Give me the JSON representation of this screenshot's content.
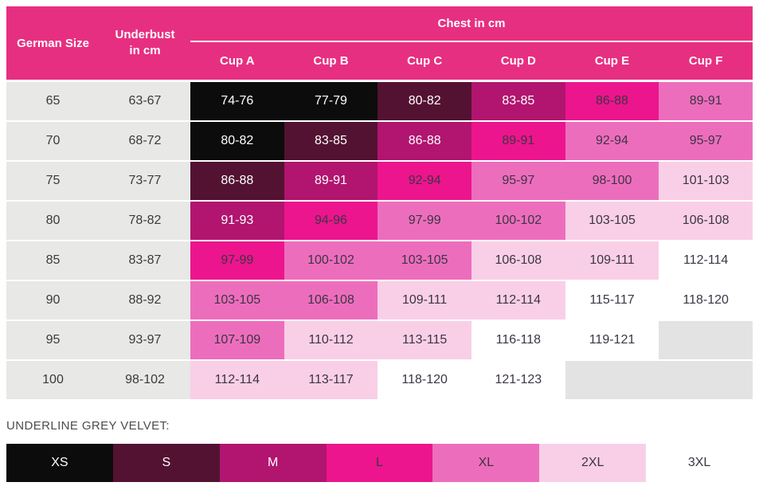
{
  "chart_data": {
    "type": "table",
    "title": "Bra size chart with color-coded garment sizes",
    "header": {
      "german_size": "German Size",
      "underbust": "Underbust in cm",
      "chest_title": "Chest in cm",
      "cups": [
        "Cup A",
        "Cup B",
        "Cup C",
        "Cup D",
        "Cup E",
        "Cup F"
      ]
    },
    "rows": [
      {
        "size": "65",
        "underbust": "63-67",
        "cups": [
          [
            "74-76",
            "XS"
          ],
          [
            "77-79",
            "XS"
          ],
          [
            "80-82",
            "S"
          ],
          [
            "83-85",
            "M"
          ],
          [
            "86-88",
            "L"
          ],
          [
            "89-91",
            "XL"
          ]
        ]
      },
      {
        "size": "70",
        "underbust": "68-72",
        "cups": [
          [
            "80-82",
            "XS"
          ],
          [
            "83-85",
            "S"
          ],
          [
            "86-88",
            "M"
          ],
          [
            "89-91",
            "L"
          ],
          [
            "92-94",
            "XL"
          ],
          [
            "95-97",
            "XL"
          ]
        ]
      },
      {
        "size": "75",
        "underbust": "73-77",
        "cups": [
          [
            "86-88",
            "S"
          ],
          [
            "89-91",
            "M"
          ],
          [
            "92-94",
            "L"
          ],
          [
            "95-97",
            "XL"
          ],
          [
            "98-100",
            "XL"
          ],
          [
            "101-103",
            "2XL"
          ]
        ]
      },
      {
        "size": "80",
        "underbust": "78-82",
        "cups": [
          [
            "91-93",
            "M"
          ],
          [
            "94-96",
            "L"
          ],
          [
            "97-99",
            "XL"
          ],
          [
            "100-102",
            "XL"
          ],
          [
            "103-105",
            "2XL"
          ],
          [
            "106-108",
            "2XL"
          ]
        ]
      },
      {
        "size": "85",
        "underbust": "83-87",
        "cups": [
          [
            "97-99",
            "L"
          ],
          [
            "100-102",
            "XL"
          ],
          [
            "103-105",
            "XL"
          ],
          [
            "106-108",
            "2XL"
          ],
          [
            "109-111",
            "2XL"
          ],
          [
            "112-114",
            "3XL"
          ]
        ]
      },
      {
        "size": "90",
        "underbust": "88-92",
        "cups": [
          [
            "103-105",
            "XL"
          ],
          [
            "106-108",
            "XL"
          ],
          [
            "109-111",
            "2XL"
          ],
          [
            "112-114",
            "2XL"
          ],
          [
            "115-117",
            "3XL"
          ],
          [
            "118-120",
            "3XL"
          ]
        ]
      },
      {
        "size": "95",
        "underbust": "93-97",
        "cups": [
          [
            "107-109",
            "XL"
          ],
          [
            "110-112",
            "2XL"
          ],
          [
            "113-115",
            "2XL"
          ],
          [
            "116-118",
            "3XL"
          ],
          [
            "119-121",
            "3XL"
          ],
          [
            "",
            ""
          ]
        ]
      },
      {
        "size": "100",
        "underbust": "98-102",
        "cups": [
          [
            "112-114",
            "2XL"
          ],
          [
            "113-117",
            "2XL"
          ],
          [
            "118-120",
            "3XL"
          ],
          [
            "121-123",
            "3XL"
          ],
          [
            "",
            ""
          ],
          [
            "",
            ""
          ]
        ]
      }
    ],
    "legend": {
      "title": "UNDERLINE GREY VELVET:",
      "sizes": [
        "XS",
        "S",
        "M",
        "L",
        "XL",
        "2XL",
        "3XL"
      ]
    },
    "colors": {
      "XS": "#0C0C0C",
      "S": "#531232",
      "M": "#B1156F",
      "L": "#EC158D",
      "XL": "#ED6DBD",
      "2XL": "#F9CFE7",
      "3XL": "#FFFFFF",
      "empty": "#E3E3E3",
      "header_bg": "#E72F81",
      "label_bg": "#E8E8E7",
      "white_text": "#FFFFFF",
      "dark_text": "#3C3544",
      "label_text": "#3A3A3A",
      "legend_title_text": "#4C4C4C"
    },
    "white_text_sizes": [
      "XS",
      "S",
      "M"
    ]
  }
}
